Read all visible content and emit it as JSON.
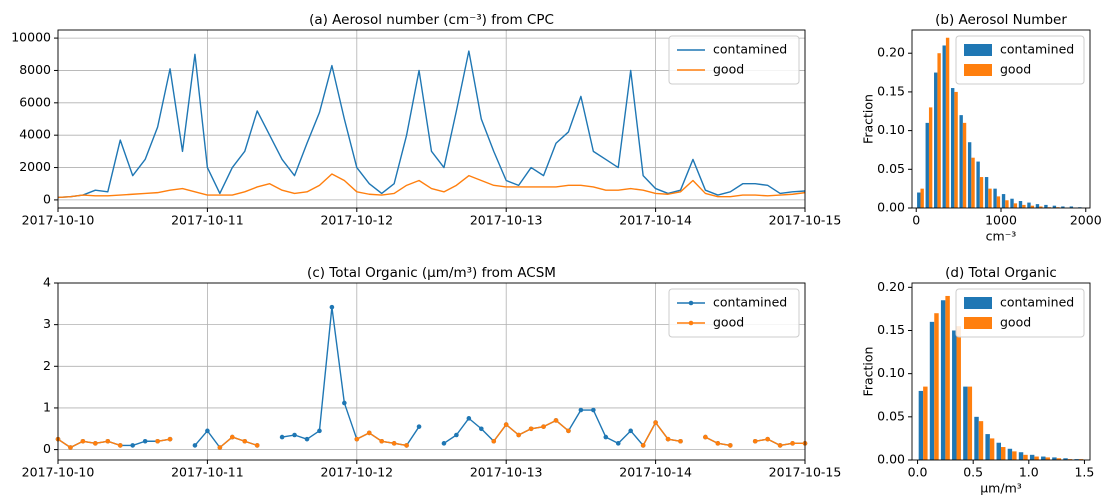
{
  "chart_data": [
    {
      "type": "line",
      "title": "(a) Aerosol number (cm⁻³) from CPC",
      "grid": true,
      "legend": "upper right",
      "xlim": [
        "2017-10-10",
        "2017-10-15"
      ],
      "xticks": [
        "2017-10-10",
        "2017-10-11",
        "2017-10-12",
        "2017-10-13",
        "2017-10-14",
        "2017-10-15"
      ],
      "ylim": [
        -500,
        10500
      ],
      "yticks": [
        0,
        2000,
        4000,
        6000,
        8000,
        10000
      ],
      "x": [
        "2017-10-10T00:00",
        "2017-10-10T02:00",
        "2017-10-10T04:00",
        "2017-10-10T06:00",
        "2017-10-10T08:00",
        "2017-10-10T10:00",
        "2017-10-10T12:00",
        "2017-10-10T14:00",
        "2017-10-10T16:00",
        "2017-10-10T18:00",
        "2017-10-10T20:00",
        "2017-10-10T22:00",
        "2017-10-11T00:00",
        "2017-10-11T02:00",
        "2017-10-11T04:00",
        "2017-10-11T06:00",
        "2017-10-11T08:00",
        "2017-10-11T10:00",
        "2017-10-11T12:00",
        "2017-10-11T14:00",
        "2017-10-11T16:00",
        "2017-10-11T18:00",
        "2017-10-11T20:00",
        "2017-10-11T22:00",
        "2017-10-12T00:00",
        "2017-10-12T02:00",
        "2017-10-12T04:00",
        "2017-10-12T06:00",
        "2017-10-12T08:00",
        "2017-10-12T10:00",
        "2017-10-12T12:00",
        "2017-10-12T14:00",
        "2017-10-12T16:00",
        "2017-10-12T18:00",
        "2017-10-12T20:00",
        "2017-10-12T22:00",
        "2017-10-13T00:00",
        "2017-10-13T02:00",
        "2017-10-13T04:00",
        "2017-10-13T06:00",
        "2017-10-13T08:00",
        "2017-10-13T10:00",
        "2017-10-13T12:00",
        "2017-10-13T14:00",
        "2017-10-13T16:00",
        "2017-10-13T18:00",
        "2017-10-13T20:00",
        "2017-10-13T22:00",
        "2017-10-14T00:00",
        "2017-10-14T02:00",
        "2017-10-14T04:00",
        "2017-10-14T06:00",
        "2017-10-14T08:00",
        "2017-10-14T10:00",
        "2017-10-14T12:00",
        "2017-10-14T14:00",
        "2017-10-14T16:00",
        "2017-10-14T18:00",
        "2017-10-14T20:00",
        "2017-10-14T22:00",
        "2017-10-15T00:00"
      ],
      "series": [
        {
          "name": "contamined",
          "color": "#1f77b4",
          "values": [
            150,
            200,
            300,
            600,
            500,
            3700,
            1500,
            2500,
            4500,
            8100,
            3000,
            9000,
            2000,
            400,
            2000,
            3000,
            5500,
            4000,
            2500,
            1500,
            3500,
            5400,
            8300,
            5000,
            2000,
            1000,
            400,
            1000,
            4000,
            8000,
            3000,
            2000,
            5500,
            9200,
            5000,
            3000,
            1200,
            900,
            2000,
            1500,
            3500,
            4200,
            6400,
            3000,
            2500,
            2000,
            8000,
            1500,
            700,
            400,
            600,
            2500,
            600,
            300,
            500,
            1000,
            1000,
            900,
            400,
            500,
            550
          ]
        },
        {
          "name": "good",
          "color": "#ff7f0e",
          "values": [
            150,
            200,
            300,
            250,
            250,
            300,
            350,
            400,
            450,
            600,
            700,
            500,
            300,
            300,
            300,
            500,
            800,
            1000,
            600,
            400,
            500,
            900,
            1600,
            1200,
            500,
            350,
            300,
            400,
            900,
            1200,
            700,
            500,
            900,
            1500,
            1200,
            900,
            800,
            800,
            800,
            800,
            800,
            900,
            900,
            800,
            600,
            600,
            700,
            600,
            400,
            350,
            500,
            1200,
            400,
            200,
            200,
            300,
            300,
            250,
            300,
            350,
            450
          ]
        }
      ]
    },
    {
      "type": "histogram",
      "title": "(b) Aerosol Number",
      "ylabel": "Fraction",
      "xlabel": "cm⁻³",
      "legend": "upper right",
      "xlim": [
        -50,
        2050
      ],
      "xticks": [
        0,
        1000,
        2000
      ],
      "ylim": [
        0,
        0.23
      ],
      "yticks": [
        {
          "value": 0,
          "label": "0.00"
        },
        0.05,
        {
          "value": 0.1,
          "label": "0.10"
        },
        0.15,
        {
          "value": 0.2,
          "label": "0.20"
        }
      ],
      "bins": [
        0,
        100,
        200,
        300,
        400,
        500,
        600,
        700,
        800,
        900,
        1000,
        1100,
        1200,
        1300,
        1400,
        1500,
        1600,
        1700,
        1800,
        1900,
        2000
      ],
      "series": [
        {
          "name": "contamined",
          "color": "#1f77b4",
          "values": [
            0.02,
            0.11,
            0.175,
            0.21,
            0.155,
            0.12,
            0.085,
            0.06,
            0.04,
            0.025,
            0.018,
            0.012,
            0.009,
            0.007,
            0.005,
            0.004,
            0.003,
            0.002,
            0.002,
            0.001
          ]
        },
        {
          "name": "good",
          "color": "#ff7f0e",
          "values": [
            0.025,
            0.13,
            0.2,
            0.22,
            0.15,
            0.11,
            0.065,
            0.04,
            0.025,
            0.015,
            0.01,
            0.006,
            0.004,
            0.003,
            0.002,
            0.001,
            0.001,
            0,
            0,
            0
          ]
        }
      ]
    },
    {
      "type": "line",
      "title": "(c) Total Organic (μm/m³) from ACSM",
      "grid": true,
      "markers": true,
      "legend": "upper right",
      "xlim": [
        "2017-10-10",
        "2017-10-15"
      ],
      "xticks": [
        "2017-10-10",
        "2017-10-11",
        "2017-10-12",
        "2017-10-13",
        "2017-10-14",
        "2017-10-15"
      ],
      "ylim": [
        -0.25,
        4
      ],
      "yticks": [
        0,
        1,
        2,
        3,
        4
      ],
      "x": [
        "2017-10-10T00:00",
        "2017-10-10T02:00",
        "2017-10-10T04:00",
        "2017-10-10T06:00",
        "2017-10-10T08:00",
        "2017-10-10T10:00",
        "2017-10-10T12:00",
        "2017-10-10T14:00",
        "2017-10-10T16:00",
        "2017-10-10T18:00",
        "2017-10-10T20:00",
        "2017-10-10T22:00",
        "2017-10-11T00:00",
        "2017-10-11T02:00",
        "2017-10-11T04:00",
        "2017-10-11T06:00",
        "2017-10-11T08:00",
        "2017-10-11T10:00",
        "2017-10-11T12:00",
        "2017-10-11T14:00",
        "2017-10-11T16:00",
        "2017-10-11T18:00",
        "2017-10-11T20:00",
        "2017-10-11T22:00",
        "2017-10-12T00:00",
        "2017-10-12T02:00",
        "2017-10-12T04:00",
        "2017-10-12T06:00",
        "2017-10-12T08:00",
        "2017-10-12T10:00",
        "2017-10-12T12:00",
        "2017-10-12T14:00",
        "2017-10-12T16:00",
        "2017-10-12T18:00",
        "2017-10-12T20:00",
        "2017-10-12T22:00",
        "2017-10-13T00:00",
        "2017-10-13T02:00",
        "2017-10-13T04:00",
        "2017-10-13T06:00",
        "2017-10-13T08:00",
        "2017-10-13T10:00",
        "2017-10-13T12:00",
        "2017-10-13T14:00",
        "2017-10-13T16:00",
        "2017-10-13T18:00",
        "2017-10-13T20:00",
        "2017-10-13T22:00",
        "2017-10-14T00:00",
        "2017-10-14T02:00",
        "2017-10-14T04:00",
        "2017-10-14T06:00",
        "2017-10-14T08:00",
        "2017-10-14T10:00",
        "2017-10-14T12:00",
        "2017-10-14T14:00",
        "2017-10-14T16:00",
        "2017-10-14T18:00",
        "2017-10-14T20:00",
        "2017-10-14T22:00",
        "2017-10-15T00:00"
      ],
      "series": [
        {
          "name": "contamined",
          "color": "#1f77b4",
          "values": [
            0.25,
            0.05,
            0.2,
            0.15,
            0.2,
            0.1,
            0.1,
            0.2,
            0.2,
            0.25,
            null,
            0.1,
            0.45,
            0.05,
            0.3,
            0.2,
            0.1,
            null,
            0.3,
            0.35,
            0.25,
            0.45,
            3.42,
            1.12,
            0.25,
            0.4,
            0.2,
            0.15,
            0.1,
            0.55,
            null,
            0.15,
            0.35,
            0.75,
            0.5,
            0.2,
            0.6,
            0.35,
            0.5,
            0.55,
            0.7,
            0.45,
            0.95,
            0.95,
            0.3,
            0.15,
            0.45,
            0.1,
            0.65,
            0.25,
            0.2,
            null,
            0.3,
            0.15,
            0.1,
            null,
            0.2,
            0.25,
            0.1,
            0.15,
            0.15
          ]
        },
        {
          "name": "good",
          "color": "#ff7f0e",
          "values": [
            0.25,
            0.05,
            0.2,
            0.15,
            0.2,
            0.1,
            null,
            null,
            0.2,
            0.25,
            null,
            null,
            null,
            0.05,
            0.3,
            0.2,
            0.1,
            null,
            null,
            null,
            null,
            null,
            null,
            null,
            0.25,
            0.4,
            0.2,
            0.15,
            0.1,
            null,
            null,
            null,
            null,
            null,
            null,
            0.2,
            0.6,
            0.35,
            0.5,
            0.55,
            0.7,
            0.45,
            null,
            null,
            null,
            null,
            null,
            0.1,
            0.65,
            0.25,
            0.2,
            null,
            0.3,
            0.15,
            0.1,
            null,
            0.2,
            0.25,
            0.1,
            0.15,
            0.15
          ]
        }
      ]
    },
    {
      "type": "histogram",
      "title": "(d) Total Organic",
      "ylabel": "Fraction",
      "xlabel": "μm/m³",
      "legend": "upper right",
      "xlim": [
        -0.05,
        1.55
      ],
      "xticks": [
        {
          "value": 0,
          "label": "0.0"
        },
        0.5,
        {
          "value": 1,
          "label": "1.0"
        },
        1.5
      ],
      "ylim": [
        0,
        0.205
      ],
      "yticks": [
        {
          "value": 0,
          "label": "0.00"
        },
        0.05,
        {
          "value": 0.1,
          "label": "0.10"
        },
        0.15,
        {
          "value": 0.2,
          "label": "0.20"
        }
      ],
      "bins": [
        0,
        0.1,
        0.2,
        0.3,
        0.4,
        0.5,
        0.6,
        0.7,
        0.8,
        0.9,
        1,
        1.1,
        1.2,
        1.3,
        1.4,
        1.5
      ],
      "series": [
        {
          "name": "contamined",
          "color": "#1f77b4",
          "values": [
            0.08,
            0.16,
            0.185,
            0.15,
            0.085,
            0.05,
            0.03,
            0.02,
            0.013,
            0.009,
            0.006,
            0.004,
            0.003,
            0.002,
            0.001
          ]
        },
        {
          "name": "good",
          "color": "#ff7f0e",
          "values": [
            0.085,
            0.17,
            0.19,
            0.155,
            0.085,
            0.045,
            0.025,
            0.015,
            0.01,
            0.006,
            0.004,
            0.003,
            0.002,
            0.001,
            0.001
          ]
        }
      ]
    }
  ]
}
